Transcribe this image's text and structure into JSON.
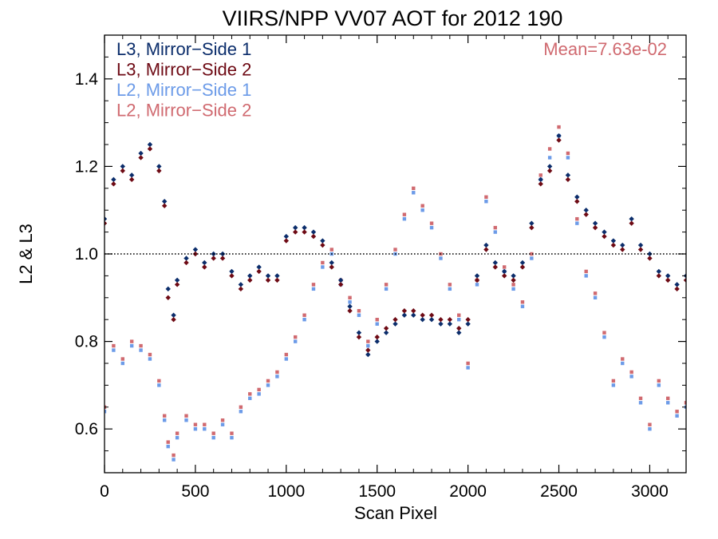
{
  "chart_data": {
    "type": "scatter",
    "title": "VIIRS/NPP VV07 AOT for 2012 190",
    "xlabel": "Scan Pixel",
    "ylabel": "L2 & L3",
    "xlim": [
      0,
      3200
    ],
    "ylim": [
      0.5,
      1.5
    ],
    "xticks": [
      0,
      500,
      1000,
      1500,
      2000,
      2500,
      3000
    ],
    "yticks": [
      0.6,
      0.8,
      1.0,
      1.2,
      1.4
    ],
    "ytick_labels": [
      "0.6",
      "0.8",
      "1.0",
      "1.2",
      "1.4"
    ],
    "reference_line": 1.0,
    "annotation": "Mean=7.63e-02",
    "legend_position": "top-left",
    "series": [
      {
        "name": "L3, Mirror−Side 1",
        "color": "#0b2d6b",
        "x": [
          0,
          50,
          100,
          150,
          200,
          250,
          300,
          330,
          350,
          380,
          400,
          450,
          500,
          550,
          600,
          650,
          700,
          750,
          800,
          850,
          900,
          950,
          1000,
          1050,
          1100,
          1150,
          1200,
          1250,
          1300,
          1350,
          1400,
          1450,
          1500,
          1550,
          1600,
          1650,
          1700,
          1750,
          1800,
          1850,
          1900,
          1950,
          2000,
          2050,
          2100,
          2150,
          2200,
          2250,
          2300,
          2350,
          2400,
          2450,
          2500,
          2550,
          2600,
          2650,
          2700,
          2750,
          2800,
          2850,
          2900,
          2950,
          3000,
          3050,
          3100,
          3150,
          3200
        ],
        "y": [
          1.08,
          1.17,
          1.2,
          1.18,
          1.23,
          1.25,
          1.2,
          1.12,
          0.92,
          0.86,
          0.94,
          0.99,
          1.01,
          0.98,
          1.0,
          1.0,
          0.96,
          0.93,
          0.95,
          0.97,
          0.95,
          0.95,
          1.04,
          1.06,
          1.06,
          1.05,
          1.03,
          0.98,
          0.94,
          0.88,
          0.82,
          0.77,
          0.8,
          0.82,
          0.84,
          0.86,
          0.86,
          0.85,
          0.85,
          0.84,
          0.84,
          0.82,
          0.84,
          0.95,
          1.02,
          0.98,
          0.96,
          0.95,
          0.98,
          1.07,
          1.17,
          1.2,
          1.27,
          1.18,
          1.13,
          1.1,
          1.07,
          1.05,
          1.03,
          1.02,
          1.08,
          1.02,
          1.0,
          0.96,
          0.95,
          0.93,
          0.95
        ]
      },
      {
        "name": "L3, Mirror−Side 2",
        "color": "#6e0a14",
        "x": [
          0,
          50,
          100,
          150,
          200,
          250,
          300,
          330,
          350,
          380,
          400,
          450,
          500,
          550,
          600,
          650,
          700,
          750,
          800,
          850,
          900,
          950,
          1000,
          1050,
          1100,
          1150,
          1200,
          1250,
          1300,
          1350,
          1400,
          1450,
          1500,
          1550,
          1600,
          1650,
          1700,
          1750,
          1800,
          1850,
          1900,
          1950,
          2000,
          2050,
          2100,
          2150,
          2200,
          2250,
          2300,
          2350,
          2400,
          2450,
          2500,
          2550,
          2600,
          2650,
          2700,
          2750,
          2800,
          2850,
          2900,
          2950,
          3000,
          3050,
          3100,
          3150,
          3200
        ],
        "y": [
          1.07,
          1.16,
          1.19,
          1.17,
          1.22,
          1.24,
          1.19,
          1.11,
          0.9,
          0.85,
          0.93,
          0.98,
          1.0,
          0.97,
          0.99,
          0.99,
          0.95,
          0.92,
          0.94,
          0.96,
          0.94,
          0.94,
          1.03,
          1.05,
          1.05,
          1.04,
          1.02,
          0.97,
          0.93,
          0.87,
          0.81,
          0.78,
          0.81,
          0.83,
          0.85,
          0.87,
          0.87,
          0.86,
          0.86,
          0.85,
          0.85,
          0.83,
          0.85,
          0.94,
          1.01,
          0.97,
          0.95,
          0.94,
          0.97,
          1.06,
          1.16,
          1.19,
          1.26,
          1.17,
          1.12,
          1.09,
          1.06,
          1.04,
          1.02,
          1.01,
          1.07,
          1.01,
          0.99,
          0.95,
          0.94,
          0.92,
          0.94
        ]
      },
      {
        "name": "L2, Mirror−Side 1",
        "color": "#6c9be8",
        "x": [
          0,
          50,
          100,
          150,
          200,
          250,
          300,
          330,
          350,
          380,
          400,
          450,
          500,
          550,
          600,
          650,
          700,
          750,
          800,
          850,
          900,
          950,
          1000,
          1050,
          1100,
          1150,
          1200,
          1250,
          1300,
          1350,
          1400,
          1450,
          1500,
          1550,
          1600,
          1650,
          1700,
          1750,
          1800,
          1850,
          1900,
          1950,
          2000,
          2050,
          2100,
          2150,
          2200,
          2250,
          2300,
          2350,
          2400,
          2450,
          2500,
          2550,
          2600,
          2650,
          2700,
          2750,
          2800,
          2850,
          2900,
          2950,
          3000,
          3050,
          3100,
          3150,
          3200
        ],
        "y": [
          0.64,
          0.78,
          0.75,
          0.79,
          0.78,
          0.76,
          0.7,
          0.62,
          0.56,
          0.53,
          0.58,
          0.62,
          0.6,
          0.6,
          0.58,
          0.61,
          0.58,
          0.64,
          0.67,
          0.68,
          0.7,
          0.72,
          0.76,
          0.8,
          0.85,
          0.92,
          0.97,
          1.0,
          0.93,
          0.89,
          0.86,
          0.79,
          0.84,
          0.92,
          1.0,
          1.08,
          1.14,
          1.1,
          1.06,
          0.99,
          0.92,
          0.85,
          0.74,
          0.93,
          1.12,
          1.05,
          0.96,
          0.92,
          0.88,
          0.99,
          1.17,
          1.22,
          1.27,
          1.22,
          1.07,
          0.95,
          0.9,
          0.81,
          0.7,
          0.75,
          0.72,
          0.66,
          0.6,
          0.7,
          0.66,
          0.63,
          0.65
        ]
      },
      {
        "name": "L2, Mirror−Side 2",
        "color": "#d06a70",
        "x": [
          0,
          50,
          100,
          150,
          200,
          250,
          300,
          330,
          350,
          380,
          400,
          450,
          500,
          550,
          600,
          650,
          700,
          750,
          800,
          850,
          900,
          950,
          1000,
          1050,
          1100,
          1150,
          1200,
          1250,
          1300,
          1350,
          1400,
          1450,
          1500,
          1550,
          1600,
          1650,
          1700,
          1750,
          1800,
          1850,
          1900,
          1950,
          2000,
          2050,
          2100,
          2150,
          2200,
          2250,
          2300,
          2350,
          2400,
          2450,
          2500,
          2550,
          2600,
          2650,
          2700,
          2750,
          2800,
          2850,
          2900,
          2950,
          3000,
          3050,
          3100,
          3150,
          3200
        ],
        "y": [
          0.65,
          0.79,
          0.76,
          0.8,
          0.79,
          0.77,
          0.71,
          0.63,
          0.57,
          0.54,
          0.59,
          0.63,
          0.61,
          0.61,
          0.59,
          0.62,
          0.59,
          0.65,
          0.68,
          0.69,
          0.71,
          0.73,
          0.77,
          0.81,
          0.86,
          0.93,
          0.98,
          1.01,
          0.94,
          0.9,
          0.87,
          0.8,
          0.85,
          0.93,
          1.01,
          1.09,
          1.15,
          1.11,
          1.07,
          1.0,
          0.93,
          0.86,
          0.75,
          0.94,
          1.13,
          1.06,
          0.97,
          0.93,
          0.89,
          1.0,
          1.18,
          1.24,
          1.29,
          1.23,
          1.08,
          0.96,
          0.91,
          0.82,
          0.71,
          0.76,
          0.73,
          0.67,
          0.61,
          0.71,
          0.67,
          0.64,
          0.66
        ]
      }
    ]
  }
}
